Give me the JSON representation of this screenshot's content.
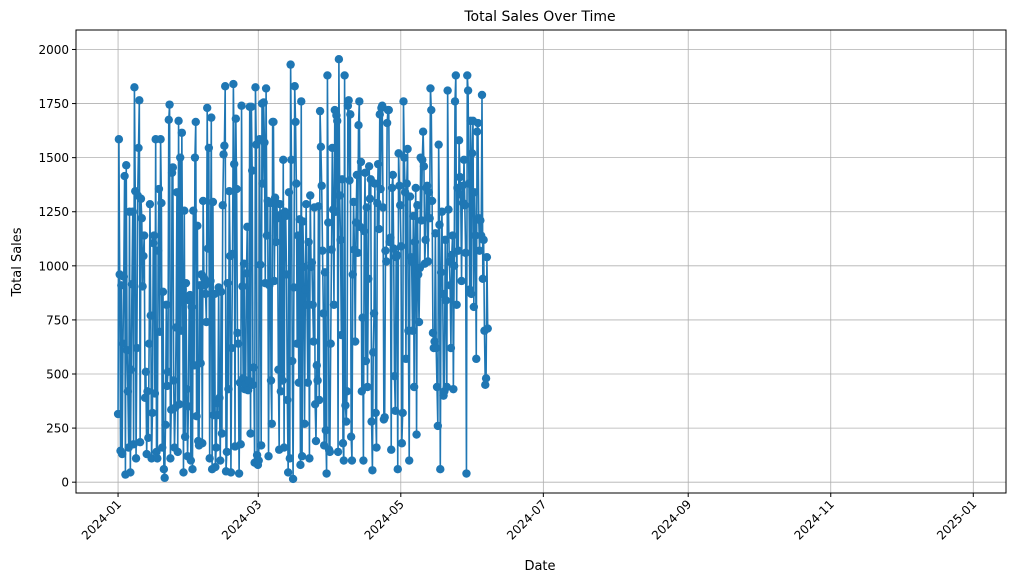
{
  "chart_data": {
    "type": "line",
    "title": "Total Sales Over Time",
    "xlabel": "Date",
    "ylabel": "Total Sales",
    "x_scale": "date",
    "xlim": [
      "2023-12-14",
      "2025-01-15"
    ],
    "ylim": [
      -50,
      2090
    ],
    "x_ticks": [
      "2024-01",
      "2024-03",
      "2024-05",
      "2024-07",
      "2024-09",
      "2024-11",
      "2025-01"
    ],
    "y_ticks": [
      0,
      250,
      500,
      750,
      1000,
      1250,
      1500,
      1750,
      2000
    ],
    "grid": true,
    "marker": "circle",
    "color": "#1f77b4",
    "series": [
      {
        "x_start": "2024-01-01",
        "x_step_days": 0.35,
        "values": [
          315,
          1585,
          960,
          145,
          910,
          130,
          640,
          950,
          1415,
          35,
          1465,
          610,
          420,
          160,
          1250,
          45,
          520,
          915,
          1250,
          175,
          1825,
          1345,
          110,
          620,
          1325,
          1545,
          1765,
          185,
          1310,
          1220,
          905,
          1045,
          1140,
          390,
          510,
          130,
          420,
          205,
          640,
          1285,
          770,
          110,
          320,
          1105,
          1140,
          410,
          1585,
          140,
          110,
          1070,
          1355,
          695,
          1585,
          1290,
          160,
          880,
          60,
          20,
          265,
          820,
          445,
          510,
          1675,
          1745,
          110,
          335,
          1430,
          1455,
          470,
          160,
          345,
          715,
          1340,
          140,
          1670,
          360,
          1500,
          700,
          1615,
          890,
          45,
          1255,
          210,
          920,
          430,
          120,
          350,
          840,
          865,
          100,
          810,
          60,
          1255,
          540,
          1500,
          1665,
          305,
          1185,
          190,
          170,
          910,
          550,
          960,
          180,
          1300,
          945,
          910,
          870,
          740,
          1730,
          1080,
          1545,
          110,
          930,
          1685,
          60,
          1295,
          310,
          870,
          70,
          160,
          365,
          310,
          900,
          390,
          100,
          880,
          225,
          1280,
          1515,
          1555,
          1830,
          50,
          140,
          920,
          430,
          1345,
          1045,
          45,
          620,
          1055,
          1840,
          1470,
          165,
          1680,
          1355,
          690,
          640,
          40,
          460,
          175,
          1740,
          905,
          480,
          1010,
          430,
          455,
          965,
          1180,
          425,
          470,
          1735,
          225,
          1735,
          1440,
          450,
          530,
          90,
          1825,
          1560,
          125,
          80,
          100,
          1585,
          1005,
          170,
          1750,
          1380,
          1755,
          1570,
          920,
          1820,
          1140,
          1300,
          120,
          910,
          1290,
          470,
          270,
          1665,
          1665,
          930,
          1315,
          1110,
          1290,
          1220,
          520,
          150,
          1285,
          420,
          1240,
          470,
          1490,
          160,
          1250,
          1230,
          960,
          380,
          45,
          1340,
          110,
          1930,
          1490,
          560,
          15,
          900,
          1830,
          1665,
          1380,
          640,
          1140,
          460,
          1215,
          80,
          1760,
          120,
          1205,
          995,
          270,
          890,
          1285,
          820,
          460,
          1110,
          110,
          1325,
          995,
          1015,
          820,
          650,
          1270,
          360,
          190,
          540,
          470,
          1275,
          380,
          1715,
          1550,
          1370,
          1070,
          780,
          170,
          970,
          240,
          40,
          1880,
          1200,
          150,
          140,
          640,
          1075,
          1545,
          1260,
          820,
          1720,
          1250,
          1695,
          1670,
          140,
          1955,
          1325,
          1120,
          680,
          1400,
          180,
          100,
          1880,
          355,
          280,
          420,
          1740,
          1765,
          1395,
          1700,
          210,
          100,
          960,
          1295,
          1075,
          650,
          1200,
          1420,
          1060,
          1650,
          1760,
          1180,
          1480,
          420,
          760,
          100,
          1160,
          1430,
          560,
          1270,
          440,
          940,
          1460,
          1310,
          1400,
          280,
          55,
          600,
          780,
          1380,
          320,
          160,
          1290,
          1470,
          1170,
          1700,
          1355,
          1730,
          1740,
          1270,
          290,
          300,
          1070,
          1020,
          1660,
          1720,
          1720,
          1110,
          1130,
          150,
          1360,
          1420,
          1080,
          490,
          330,
          1040,
          1050,
          60,
          1520,
          1370,
          1280,
          1090,
          180,
          320,
          1760,
          1500,
          1340,
          570,
          1380,
          1540,
          700,
          100,
          1320,
          1040,
          1020,
          700,
          1230,
          440,
          1110,
          1360,
          220,
          1280,
          960,
          740,
          990,
          1500,
          1210,
          1490,
          1620,
          1460,
          1010,
          1120,
          1360,
          1370,
          1020,
          1340,
          1220,
          1820,
          1720,
          1300,
          690,
          620,
          650,
          1150,
          620,
          440,
          260,
          1560,
          1190,
          60,
          970,
          1250,
          870,
          400,
          420,
          1120,
          840,
          440,
          1810,
          1260,
          1020,
          910,
          620,
          1050,
          1140,
          430,
          1000,
          1760,
          1880,
          820,
          1360,
          1070,
          1580,
          1410,
          1330,
          930,
          1370,
          1290,
          1490,
          1280,
          1060,
          40,
          1880,
          1810,
          1380,
          890,
          1670,
          870,
          1520,
          1670,
          810,
          1340,
          1140,
          570,
          1620,
          1660,
          1220,
          1070,
          1210,
          1140,
          1790,
          940,
          1120,
          700,
          450,
          480,
          1040,
          710
        ]
      }
    ]
  }
}
